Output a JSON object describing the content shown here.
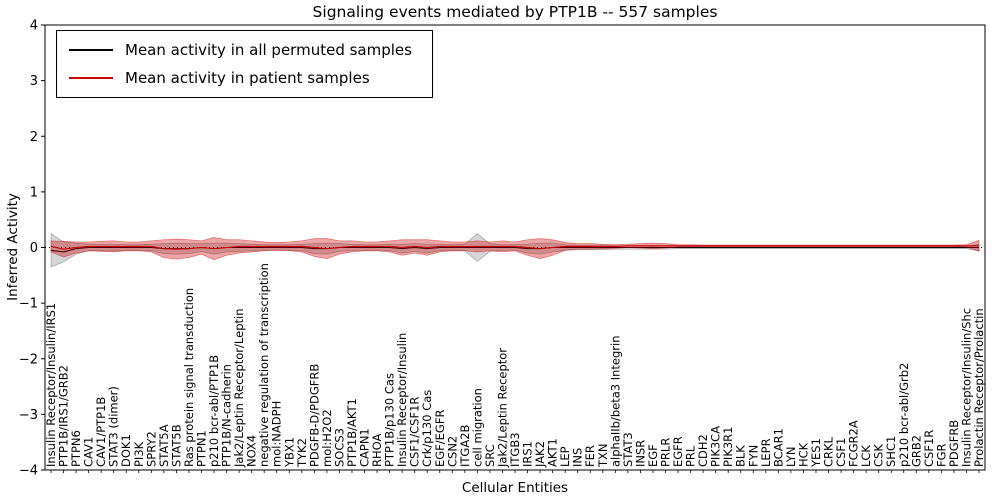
{
  "chart_data": {
    "type": "line",
    "title": "Signaling events mediated by PTP1B -- 557 samples",
    "xlabel": "Cellular Entities",
    "ylabel": "Inferred Activity",
    "ylim": [
      -4,
      4
    ],
    "yticks": [
      -4,
      -3,
      -2,
      -1,
      0,
      1,
      2,
      3,
      4
    ],
    "grid": false,
    "legend_position": "upper left",
    "zero_line": {
      "style": "dotted",
      "color": "#000000"
    },
    "categories": [
      "Insulin Receptor/Insulin/IRS1",
      "PTP1B/IRS1/GRB2",
      "PTPN6",
      "CAV1",
      "CAV1/PTP1B",
      "STAT3 (dimer)",
      "DOK1",
      "PI3K",
      "SPRY2",
      "STAT5A",
      "STAT5B",
      "Ras protein signal transduction",
      "PTPN1",
      "p210 bcr-abl/PTP1B",
      "PTP1B/N-cadherin",
      "Jak2/Leptin Receptor/Leptin",
      "NOX4",
      "negative regulation of transcription",
      "mol:NADPH",
      "YBX1",
      "TYK2",
      "PDGFB-D/PDGFRB",
      "mol:H2O2",
      "SOCS3",
      "PTP1B/AKT1",
      "CAPN1",
      "RHOA",
      "PTP1B/p130 Cas",
      "Insulin Receptor/Insulin",
      "CSF1/CSF1R",
      "Crk/p130 Cas",
      "EGF/EGFR",
      "CSN2",
      "ITGA2B",
      "cell migration",
      "SRC",
      "Jak2/Leptin Receptor",
      "ITGB3",
      "IRS1",
      "JAK2",
      "AKT1",
      "LEP",
      "INS",
      "FER",
      "TXN",
      "alphaIIb/beta3 Integrin",
      "STAT3",
      "INSR",
      "EGF",
      "PRLR",
      "EGFR",
      "PRL",
      "CDH2",
      "PIK3CA",
      "PIK3R1",
      "BLK",
      "FYN",
      "LEPR",
      "BCAR1",
      "LYN",
      "HCK",
      "YES1",
      "CRKL",
      "CSF1",
      "FCGR2A",
      "LCK",
      "CSK",
      "SHC1",
      "p210 bcr-abl/Grb2",
      "GRB2",
      "CSF1R",
      "FGR",
      "PDGFRB",
      "Insulin Receptor/Insulin/Shc",
      "Prolactin Receptor/Prolactin"
    ],
    "series": [
      {
        "key": "permuted",
        "name": "Mean activity in all permuted samples",
        "color": "#000000",
        "band_alpha": 0.16,
        "mean": [
          -0.05,
          -0.08,
          -0.02,
          0,
          0,
          0,
          0,
          0,
          0,
          -0.02,
          -0.02,
          -0.02,
          0,
          -0.02,
          0,
          0,
          0,
          0,
          0,
          0,
          0,
          -0.02,
          -0.02,
          0,
          0,
          0,
          0,
          0,
          -0.02,
          0,
          -0.02,
          0,
          0,
          0,
          0,
          0,
          0,
          0,
          -0.02,
          -0.02,
          0,
          0,
          0,
          0,
          0,
          0,
          0,
          0,
          0,
          0,
          0,
          0,
          0,
          0,
          0,
          0,
          0,
          0,
          0,
          0,
          0,
          0,
          0,
          0,
          0,
          0,
          0,
          0,
          0,
          0,
          0,
          0,
          0,
          0,
          0
        ],
        "std": [
          0.3,
          0.18,
          0.1,
          0.06,
          0.06,
          0.06,
          0.05,
          0.05,
          0.06,
          0.09,
          0.1,
          0.09,
          0.07,
          0.1,
          0.08,
          0.07,
          0.06,
          0.05,
          0.05,
          0.05,
          0.06,
          0.09,
          0.1,
          0.07,
          0.06,
          0.05,
          0.05,
          0.06,
          0.08,
          0.07,
          0.08,
          0.06,
          0.05,
          0.06,
          0.25,
          0.07,
          0.05,
          0.05,
          0.08,
          0.1,
          0.08,
          0.05,
          0.04,
          0.04,
          0.04,
          0.03,
          0.03,
          0.03,
          0.03,
          0.03,
          0.02,
          0.02,
          0.02,
          0.02,
          0.02,
          0.02,
          0.02,
          0.02,
          0.02,
          0.02,
          0.02,
          0.02,
          0.02,
          0.02,
          0.02,
          0.02,
          0.02,
          0.02,
          0.02,
          0.02,
          0.02,
          0.02,
          0.02,
          0.02,
          0.06
        ]
      },
      {
        "key": "patient",
        "name": "Mean activity in patient samples",
        "color": "#cc0000",
        "band_alpha": 0.35,
        "mean": [
          0.02,
          -0.03,
          0,
          0.02,
          0.02,
          0.02,
          0.02,
          0.02,
          0.02,
          -0.02,
          -0.03,
          -0.02,
          0,
          -0.02,
          0,
          0.02,
          0.02,
          0.02,
          0.02,
          0.02,
          0.02,
          0,
          -0.02,
          0,
          0.02,
          0.02,
          0.02,
          0.02,
          0,
          0.02,
          0,
          0.02,
          0.02,
          0.02,
          0.02,
          0.02,
          0.02,
          0.02,
          0,
          -0.02,
          0,
          0.02,
          0.02,
          0.02,
          0.02,
          0.02,
          0.03,
          0.03,
          0.03,
          0.03,
          0.03,
          0.03,
          0.03,
          0.03,
          0.03,
          0.03,
          0.03,
          0.03,
          0.03,
          0.03,
          0.03,
          0.03,
          0.03,
          0.03,
          0.03,
          0.03,
          0.03,
          0.03,
          0.03,
          0.03,
          0.03,
          0.03,
          0.03,
          0.03,
          0.03
        ],
        "std": [
          0.1,
          0.14,
          0.1,
          0.08,
          0.09,
          0.1,
          0.08,
          0.08,
          0.1,
          0.16,
          0.18,
          0.16,
          0.12,
          0.2,
          0.14,
          0.12,
          0.1,
          0.08,
          0.07,
          0.08,
          0.1,
          0.16,
          0.18,
          0.12,
          0.1,
          0.08,
          0.08,
          0.1,
          0.14,
          0.12,
          0.14,
          0.1,
          0.08,
          0.08,
          0.1,
          0.08,
          0.1,
          0.08,
          0.14,
          0.18,
          0.14,
          0.07,
          0.05,
          0.05,
          0.04,
          0.035,
          0.03,
          0.04,
          0.05,
          0.04,
          0.02,
          0.02,
          0.015,
          0.015,
          0.015,
          0.015,
          0.015,
          0.015,
          0.015,
          0.015,
          0.015,
          0.015,
          0.015,
          0.015,
          0.015,
          0.015,
          0.015,
          0.015,
          0.015,
          0.015,
          0.015,
          0.015,
          0.015,
          0.02,
          0.1
        ]
      }
    ],
    "sample_count_note": "557 samples"
  }
}
